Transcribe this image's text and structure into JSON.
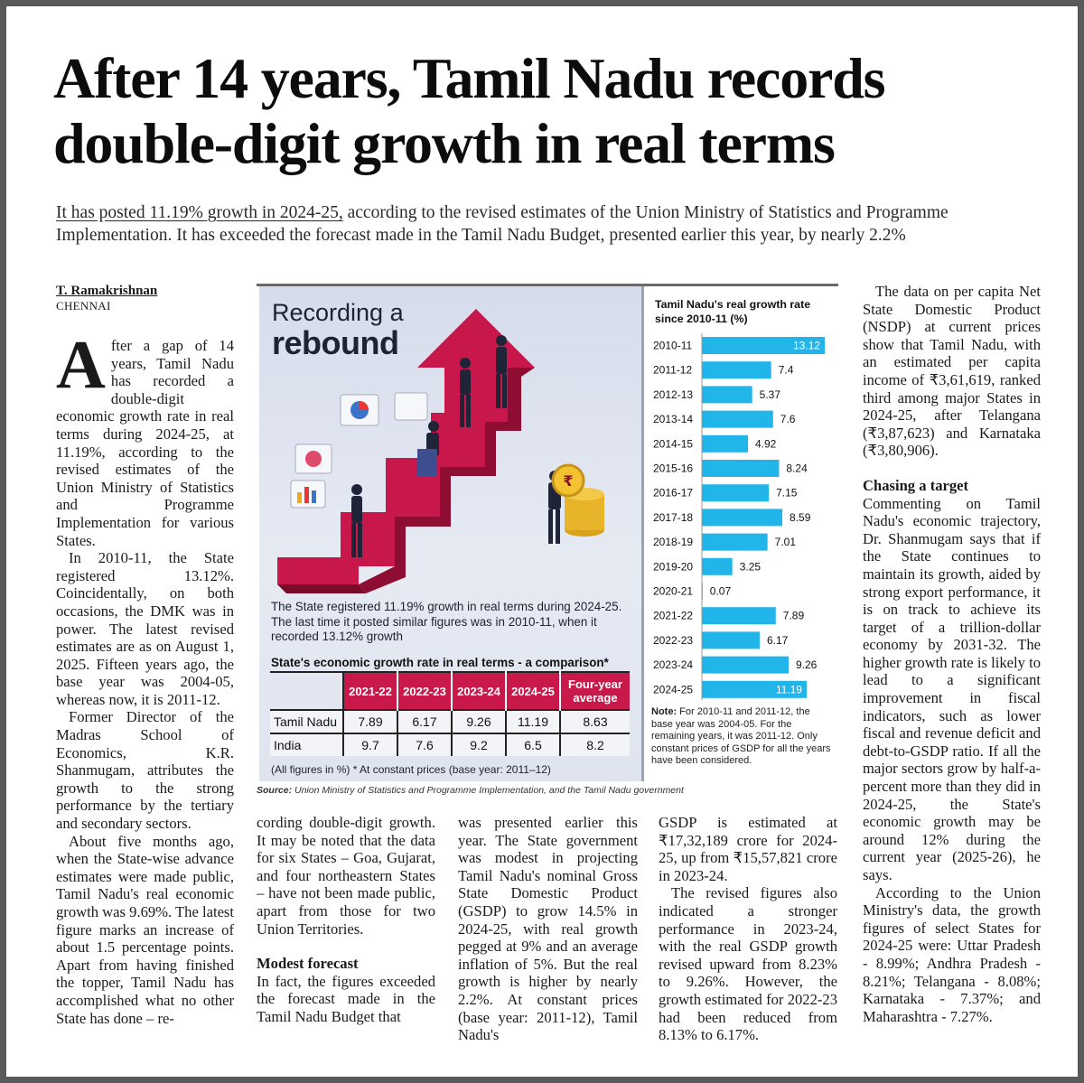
{
  "headline": {
    "line1": "After 14 years, Tamil Nadu records",
    "line2": "double-digit growth in real terms"
  },
  "subhead": {
    "underlined": "It has posted 11.19% growth in 2024-25,",
    "rest": " according to the revised estimates of the Union Ministry of Statistics and Programme Implementation. It has exceeded the forecast made in the Tamil Nadu Budget, presented earlier this year, by nearly 2.2%"
  },
  "byline": {
    "author": "T. Ramakrishnan",
    "dateline": "CHENNAI"
  },
  "columns": {
    "col1": {
      "dropcap": "A",
      "p1": "fter a gap of 14 years, Tamil Nadu has recorded a double-digit economic growth rate in real terms during 2024-25, at 11.19%, according to the revised estimates of the Union Ministry of Statistics and Programme Implementation for various States.",
      "p2": "In 2010-11, the State registered 13.12%. Coincidentally, on both occasions, the DMK was in power. The latest revised estimates are as on August 1, 2025. Fifteen years ago, the base year was 2004-05, whereas now, it is 2011-12.",
      "p3": "Former Director of the Madras School of Economics, K.R. Shanmugam, attributes the growth to the strong performance by the tertiary and secondary sectors.",
      "p4": "About five months ago, when the State-wise advance estimates were made public, Tamil Nadu's real economic growth was 9.69%. The latest figure marks an increase of about 1.5 percentage points. Apart from having finished the topper, Tamil Nadu has accomplished what no other State has done – re-"
    },
    "col2": {
      "p1": "cording double-digit growth. It may be noted that the data for six States – Goa, Gujarat, and four northeastern States – have not been made public, apart from those for two Union Territories.",
      "subhead": "Modest forecast",
      "p2": "In fact, the figures exceeded the forecast made in the Tamil Nadu Budget that"
    },
    "col3": {
      "p1": "was presented earlier this year. The State government was modest in projecting Tamil Nadu's nominal Gross State Domestic Product (GSDP) to grow 14.5% in 2024-25, with real growth pegged at 9% and an average inflation of 5%. But the real growth is higher by nearly 2.2%. At constant prices (base year: 2011-12), Tamil Nadu's"
    },
    "col4": {
      "p1": "GSDP is estimated at ₹17,32,189 crore for 2024-25, up from ₹15,57,821 crore in 2023-24.",
      "p2": "The revised figures also indicated a stronger performance in 2023-24, with the real GSDP growth revised upward from 8.23% to 9.26%. However, the growth estimated for 2022-23 had been reduced from 8.13% to 6.17%."
    },
    "col5": {
      "p1": "The data on per capita Net State Domestic Product (NSDP) at current prices show that Tamil Nadu, with an estimated per capita income of ₹3,61,619, ranked third among major States in 2024-25, after Telangana (₹3,87,623) and Karnataka (₹3,80,906).",
      "subhead": "Chasing a target",
      "p2": "Commenting on Tamil Nadu's economic trajectory, Dr. Shanmugam says that if the State continues to maintain its growth, aided by strong export performance, it is on track to achieve its target of a trillion-dollar economy by 2031-32. The higher growth rate is likely to lead to a significant improvement in fiscal indicators, such as lower fiscal and revenue deficit and debt-to-GSDP ratio. If all the major sectors grow by half-a-percent more than they did in 2024-25, the State's economic growth may be around 12% during the current year (2025-26), he says.",
      "p3": "According to the Union Ministry's data, the growth figures of select States for 2024-25 were: Uttar Pradesh - 8.99%; Andhra Pradesh - 8.21%; Telangana - 8.08%; Karnataka - 7.37%; and Maharashtra - 7.27%."
    }
  },
  "infographic": {
    "title_line1": "Recording a",
    "title_line2": "rebound",
    "caption": "The State registered 11.19% growth in real terms during 2024-25. The last time it posted similar figures was in 2010-11, when it recorded 13.12% growth",
    "table": {
      "title": "State's economic growth rate in real terms - a comparison*",
      "headers": [
        "2021-22",
        "2022-23",
        "2023-24",
        "2024-25",
        "Four-year average"
      ],
      "rows": [
        {
          "label": "Tamil Nadu",
          "values": [
            "7.89",
            "6.17",
            "9.26",
            "11.19",
            "8.63"
          ]
        },
        {
          "label": "India",
          "values": [
            "9.7",
            "7.6",
            "9.2",
            "6.5",
            "8.2"
          ]
        }
      ],
      "note": "(All figures in %) * At constant prices (base year: 2011–12)",
      "header_color": "#c9184a"
    },
    "source_label": "Source:",
    "source_text": " Union Ministry of Statistics and Programme Implementation, and the Tamil Nadu government",
    "chart_note_label": "Note:",
    "chart_note": " For 2010-11 and 2011-12, the base year was 2004-05. For the remaining years, it was 2011-12. Only constant prices of GSDP for all the years have been considered."
  },
  "chart_data": {
    "type": "bar",
    "orientation": "horizontal",
    "title": "Tamil Nadu's real growth rate since 2010-11 (%)",
    "categories": [
      "2010-11",
      "2011-12",
      "2012-13",
      "2013-14",
      "2014-15",
      "2015-16",
      "2016-17",
      "2017-18",
      "2018-19",
      "2019-20",
      "2020-21",
      "2021-22",
      "2022-23",
      "2023-24",
      "2024-25"
    ],
    "values": [
      13.12,
      7.4,
      5.37,
      7.6,
      4.92,
      8.24,
      7.15,
      8.59,
      7.01,
      3.25,
      0.07,
      7.89,
      6.17,
      9.26,
      11.19
    ],
    "labels": [
      "13.12",
      "7.4",
      "5.37",
      "7.6",
      "4.92",
      "8.24",
      "7.15",
      "8.59",
      "7.01",
      "3.25",
      "0.07",
      "7.89",
      "6.17",
      "9.26",
      "11.19"
    ],
    "bar_color": "#22b5ea",
    "grid": false,
    "xlim": [
      0,
      13.12
    ]
  }
}
